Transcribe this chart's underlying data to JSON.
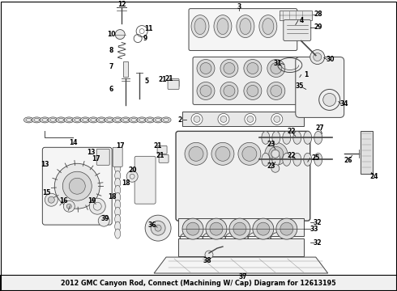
{
  "title": "2012 GMC Canyon Rod, Connect (Machining W/ Cap) Diagram for 12613195",
  "bg_color": "#ffffff",
  "border_color": "#000000",
  "text_color": "#000000",
  "label_fontsize": 5.5,
  "title_fontsize": 5.8,
  "lw": 0.7,
  "gray": "#888888",
  "darkgray": "#444444",
  "lightgray": "#cccccc"
}
